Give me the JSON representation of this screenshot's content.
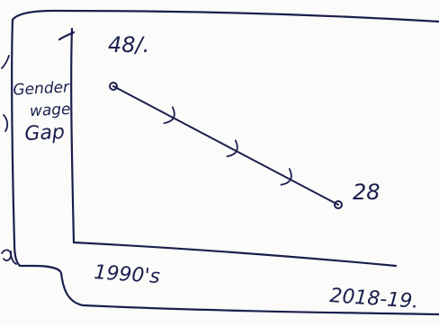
{
  "chart_data": {
    "type": "line",
    "ylabel_lines": [
      "Gender",
      "wage",
      "Gap"
    ],
    "x": [
      "1990's",
      "2018-19."
    ],
    "series": [
      {
        "values": [
          48,
          28
        ]
      }
    ],
    "point_labels": [
      "48/.",
      "28"
    ],
    "grid": false,
    "legend": "none"
  },
  "colors": {
    "ink": "#1a1f4e",
    "paper": "#fbfbf9"
  }
}
